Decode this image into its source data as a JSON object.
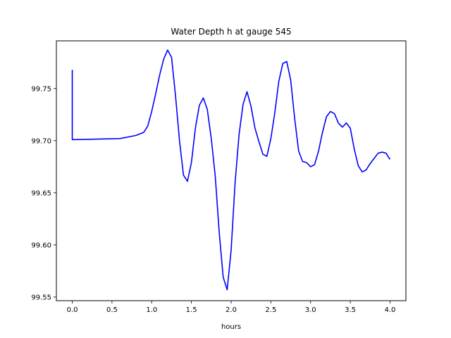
{
  "chart_data": {
    "type": "line",
    "title": "Water Depth h at gauge 545",
    "xlabel": "hours",
    "ylabel": "",
    "xlim": [
      -0.2,
      4.2
    ],
    "ylim": [
      99.5465,
      99.7958
    ],
    "xticks": [
      0.0,
      0.5,
      1.0,
      1.5,
      2.0,
      2.5,
      3.0,
      3.5,
      4.0
    ],
    "xtick_labels": [
      "0.0",
      "0.5",
      "1.0",
      "1.5",
      "2.0",
      "2.5",
      "3.0",
      "3.5",
      "4.0"
    ],
    "yticks": [
      99.55,
      99.6,
      99.65,
      99.7,
      99.75
    ],
    "ytick_labels": [
      "99.55",
      "99.60",
      "99.65",
      "99.70",
      "99.75"
    ],
    "grid": false,
    "color": "#0000ff",
    "series": [
      {
        "x": [
          0.0,
          0.0,
          0.0,
          0.3,
          0.6,
          0.8,
          0.9,
          0.95,
          1.0,
          1.05,
          1.1,
          1.15,
          1.2,
          1.25,
          1.3,
          1.35,
          1.4,
          1.45,
          1.5,
          1.55,
          1.6,
          1.65,
          1.7,
          1.75,
          1.8,
          1.85,
          1.9,
          1.95,
          2.0,
          2.05,
          2.1,
          2.15,
          2.2,
          2.25,
          2.3,
          2.35,
          2.4,
          2.45,
          2.5,
          2.55,
          2.6,
          2.65,
          2.7,
          2.75,
          2.8,
          2.85,
          2.9,
          2.95,
          3.0,
          3.05,
          3.1,
          3.15,
          3.2,
          3.25,
          3.3,
          3.35,
          3.4,
          3.45,
          3.5,
          3.55,
          3.6,
          3.65,
          3.7,
          3.75,
          3.8,
          3.85,
          3.9,
          3.95,
          4.0
        ],
        "y": [
          99.768,
          99.701,
          99.701,
          99.7015,
          99.702,
          99.705,
          99.708,
          99.714,
          99.728,
          99.745,
          99.763,
          99.778,
          99.787,
          99.78,
          99.743,
          99.7,
          99.667,
          99.661,
          99.679,
          99.712,
          99.734,
          99.741,
          99.73,
          99.702,
          99.666,
          99.612,
          99.569,
          99.557,
          99.595,
          99.66,
          99.706,
          99.735,
          99.747,
          99.733,
          99.712,
          99.699,
          99.687,
          99.685,
          99.702,
          99.727,
          99.757,
          99.774,
          99.776,
          99.758,
          99.721,
          99.69,
          99.68,
          99.679,
          99.675,
          99.677,
          99.69,
          99.708,
          99.723,
          99.728,
          99.726,
          99.717,
          99.713,
          99.717,
          99.712,
          99.692,
          99.676,
          99.67,
          99.672,
          99.678,
          99.683,
          99.688,
          99.689,
          99.688,
          99.682
        ]
      }
    ]
  }
}
